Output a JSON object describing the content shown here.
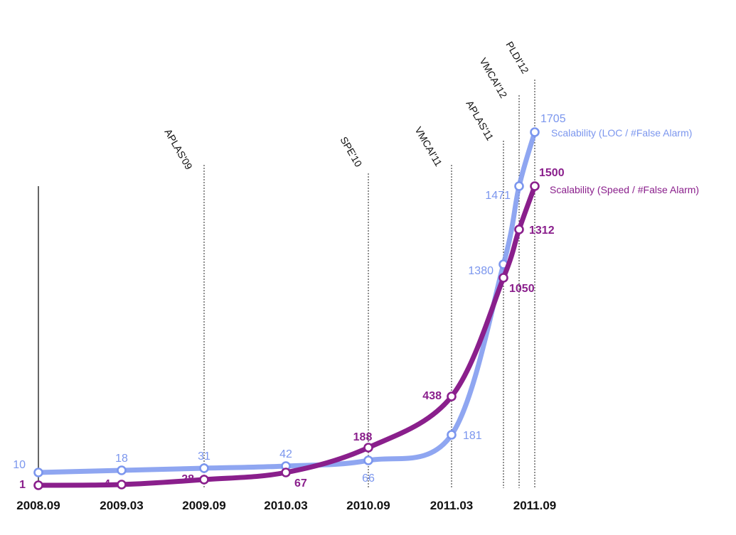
{
  "chart_data": {
    "type": "line",
    "title": "",
    "xlabel": "",
    "ylabel": "",
    "x_ticks": [
      "2008.09",
      "2009.03",
      "2009.09",
      "2010.03",
      "2010.09",
      "2011.03",
      "2011.09"
    ],
    "events": [
      "APLAS'09",
      "SPE'10",
      "VMCAI'11",
      "APLAS'11",
      "VMCAI'12",
      "PLDI'12"
    ],
    "series": [
      {
        "name": "Scalability (LOC / #False Alarm)",
        "color": "#7b96ee",
        "points": [
          {
            "x": "2008.09",
            "y": 10,
            "label": "10"
          },
          {
            "x": "2009.03",
            "y": 18,
            "label": "18"
          },
          {
            "x": "2009.09",
            "y": 31,
            "label": "31"
          },
          {
            "x": "2010.03",
            "y": 42,
            "label": "42"
          },
          {
            "x": "2010.09",
            "y": 66,
            "label": "66"
          },
          {
            "x": "2011.03",
            "y": 181,
            "label": "181"
          },
          {
            "x": "APLAS'11",
            "y": 1380,
            "label": "1380"
          },
          {
            "x": "VMCAI'12",
            "y": 1471,
            "label": "1471"
          },
          {
            "x": "2011.09",
            "y": 1705,
            "label": "1705"
          }
        ]
      },
      {
        "name": "Scalability (Speed / #False Alarm)",
        "color": "#8a1f8c",
        "points": [
          {
            "x": "2008.09",
            "y": 1,
            "label": "1"
          },
          {
            "x": "2009.03",
            "y": 4,
            "label": "4"
          },
          {
            "x": "2009.09",
            "y": 28,
            "label": "28"
          },
          {
            "x": "2010.03",
            "y": 67,
            "label": "67"
          },
          {
            "x": "2010.09",
            "y": 188,
            "label": "188"
          },
          {
            "x": "2011.03",
            "y": 438,
            "label": "438"
          },
          {
            "x": "APLAS'11",
            "y": 1050,
            "label": "1050"
          },
          {
            "x": "VMCAI'12",
            "y": 1312,
            "label": "1312"
          },
          {
            "x": "2011.09",
            "y": 1500,
            "label": "1500"
          }
        ]
      }
    ],
    "legend_placement": "right of series endpoints",
    "grid": false
  }
}
